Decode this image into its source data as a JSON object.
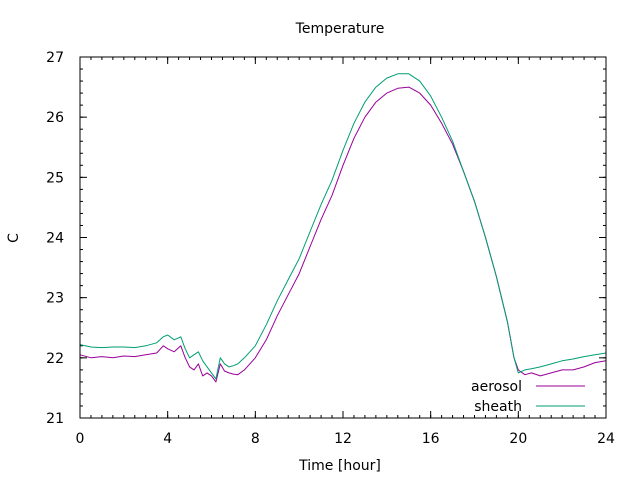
{
  "chart_data": {
    "type": "line",
    "title": "Temperature",
    "xlabel": "Time [hour]",
    "ylabel": "C",
    "xlim": [
      0,
      24
    ],
    "ylim": [
      21,
      27
    ],
    "x_major_ticks": [
      0,
      4,
      8,
      12,
      16,
      20,
      24
    ],
    "y_major_ticks": [
      21,
      22,
      23,
      24,
      25,
      26,
      27
    ],
    "x_minor_step": 0.5,
    "y_minor_step": 0.2,
    "grid": false,
    "legend_position": "bottom-right",
    "series": [
      {
        "name": "aerosol",
        "color": "#990099",
        "x": [
          0,
          0.5,
          1,
          1.5,
          2,
          2.5,
          3,
          3.5,
          3.8,
          4,
          4.3,
          4.6,
          4.8,
          5,
          5.2,
          5.4,
          5.6,
          5.8,
          6,
          6.2,
          6.4,
          6.6,
          6.8,
          7,
          7.2,
          7.5,
          8,
          8.5,
          9,
          9.5,
          10,
          10.5,
          11,
          11.5,
          12,
          12.5,
          13,
          13.5,
          14,
          14.5,
          15,
          15.5,
          16,
          16.5,
          17,
          17.5,
          18,
          18.5,
          19,
          19.5,
          19.8,
          20,
          20.3,
          20.6,
          21,
          21.5,
          22,
          22.5,
          23,
          23.5,
          24
        ],
        "values": [
          22.05,
          22.0,
          22.02,
          22.0,
          22.03,
          22.02,
          22.05,
          22.08,
          22.2,
          22.15,
          22.1,
          22.2,
          22.0,
          21.85,
          21.8,
          21.9,
          21.7,
          21.75,
          21.7,
          21.6,
          21.9,
          21.78,
          21.75,
          21.73,
          21.72,
          21.8,
          22.0,
          22.3,
          22.7,
          23.05,
          23.4,
          23.85,
          24.3,
          24.7,
          25.2,
          25.65,
          26.0,
          26.25,
          26.4,
          26.48,
          26.5,
          26.4,
          26.2,
          25.9,
          25.55,
          25.1,
          24.6,
          24.0,
          23.35,
          22.6,
          22.0,
          21.8,
          21.72,
          21.75,
          21.7,
          21.75,
          21.8,
          21.8,
          21.85,
          21.92,
          21.95
        ]
      },
      {
        "name": "sheath",
        "color": "#009e73",
        "x": [
          0,
          0.5,
          1,
          1.5,
          2,
          2.5,
          3,
          3.5,
          3.8,
          4,
          4.3,
          4.6,
          4.8,
          5,
          5.2,
          5.4,
          5.6,
          5.8,
          6,
          6.2,
          6.4,
          6.6,
          6.8,
          7,
          7.2,
          7.5,
          8,
          8.5,
          9,
          9.5,
          10,
          10.5,
          11,
          11.5,
          12,
          12.5,
          13,
          13.5,
          14,
          14.5,
          15,
          15.5,
          16,
          16.5,
          17,
          17.5,
          18,
          18.5,
          19,
          19.5,
          19.8,
          20,
          20.3,
          20.6,
          21,
          21.5,
          22,
          22.5,
          23,
          23.5,
          24
        ],
        "values": [
          22.22,
          22.18,
          22.17,
          22.18,
          22.18,
          22.17,
          22.2,
          22.25,
          22.35,
          22.38,
          22.3,
          22.35,
          22.15,
          22.0,
          22.05,
          22.1,
          21.95,
          21.85,
          21.75,
          21.65,
          22.0,
          21.9,
          21.85,
          21.87,
          21.9,
          22.0,
          22.2,
          22.55,
          22.95,
          23.3,
          23.65,
          24.1,
          24.55,
          24.95,
          25.45,
          25.9,
          26.25,
          26.5,
          26.65,
          26.72,
          26.72,
          26.6,
          26.35,
          26.0,
          25.6,
          25.1,
          24.6,
          24.0,
          23.35,
          22.6,
          22.0,
          21.75,
          21.8,
          21.82,
          21.85,
          21.9,
          21.95,
          21.98,
          22.02,
          22.05,
          22.08
        ]
      }
    ]
  }
}
